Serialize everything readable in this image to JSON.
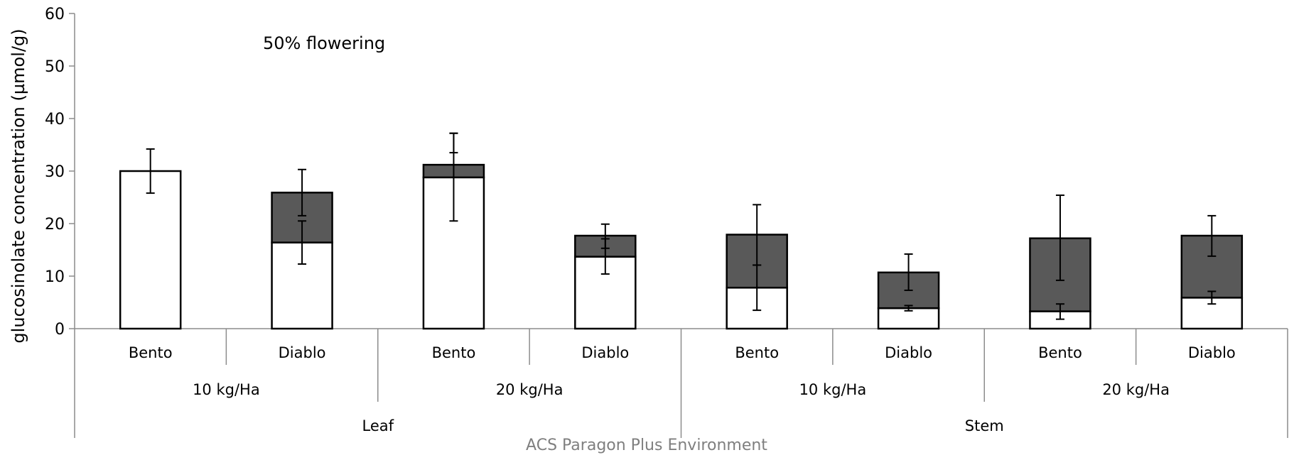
{
  "chart_data": {
    "type": "bar",
    "stacked": true,
    "ylabel": "glucosinolate concentration (µmol/g)",
    "ylim": [
      0,
      60
    ],
    "yticks": [
      0,
      10,
      20,
      30,
      40,
      50,
      60
    ],
    "annotation": "50% flowering",
    "footer": "ACS Paragon Plus Environment",
    "categories": [
      "Bento",
      "Diablo",
      "Bento",
      "Diablo",
      "Bento",
      "Diablo",
      "Bento",
      "Diablo"
    ],
    "group_labels": [
      "10 kg/Ha",
      "20 kg/Ha",
      "10 kg/Ha",
      "20 kg/Ha"
    ],
    "tissue_labels": [
      "Leaf",
      "Stem"
    ],
    "series": [
      {
        "color": "#ffffff",
        "values": [
          30.0,
          16.4,
          28.8,
          13.7,
          7.8,
          3.9,
          3.3,
          5.9
        ],
        "err_low": [
          25.8,
          12.3,
          20.5,
          10.4,
          3.5,
          3.4,
          1.8,
          4.7
        ],
        "err_high": [
          34.2,
          20.5,
          37.2,
          17.1,
          12.1,
          4.4,
          4.7,
          7.1
        ]
      },
      {
        "color": "#595959",
        "values": [
          0.0,
          9.5,
          2.4,
          4.0,
          10.1,
          6.8,
          13.9,
          11.8
        ],
        "err_low": [
          null,
          21.5,
          33.5,
          15.3,
          12.1,
          7.3,
          9.2,
          13.8
        ],
        "err_high": [
          null,
          30.3,
          37.2,
          19.9,
          23.6,
          14.2,
          25.4,
          21.5
        ]
      }
    ]
  }
}
